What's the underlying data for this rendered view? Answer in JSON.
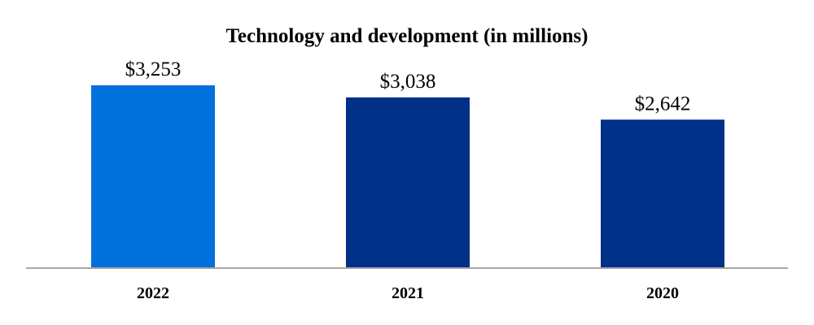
{
  "chart_data": {
    "type": "bar",
    "title": "Technology and development (in millions)",
    "categories": [
      "2022",
      "2021",
      "2020"
    ],
    "values": [
      3253,
      3038,
      2642
    ],
    "value_labels": [
      "$3,253",
      "$3,038",
      "$2,642"
    ],
    "bar_colors": [
      "#0070DC",
      "#003087",
      "#003087"
    ],
    "axis_color": "#A6A6A6",
    "xlabel": "",
    "ylabel": "",
    "ylim": [
      0,
      3500
    ],
    "grid": false,
    "legend": "none"
  }
}
